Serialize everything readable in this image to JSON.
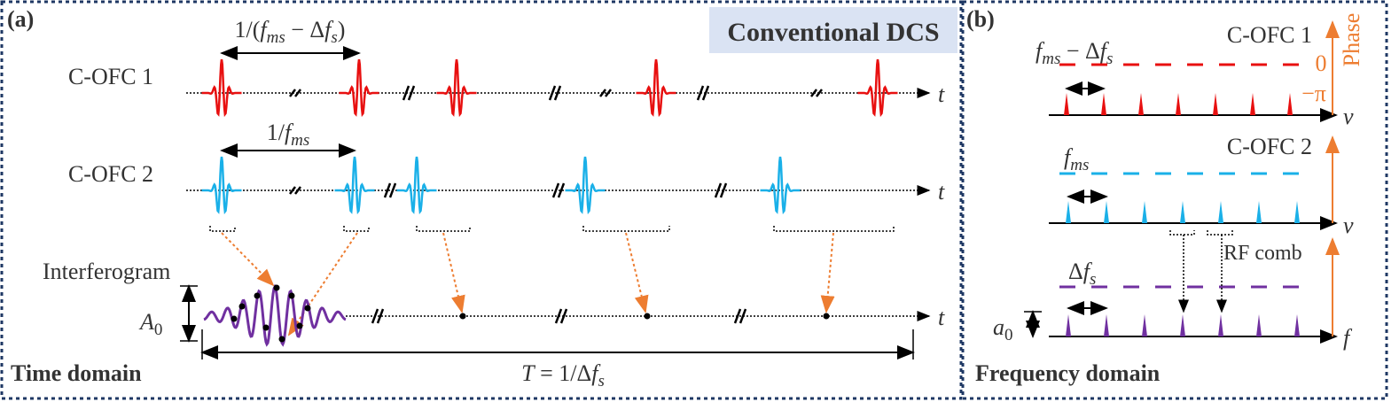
{
  "panel_a": {
    "tag": "(a)",
    "badge": "Conventional DCS",
    "period_label": [
      "1/(",
      "f",
      "ms",
      " − Δ",
      "f",
      "s",
      ")"
    ],
    "comb1": "C-OFC 1",
    "rep_label": [
      "1/",
      "f",
      "ms"
    ],
    "comb2": "C-OFC 2",
    "interferogram": "Interferogram",
    "amplitude": [
      "A",
      "0"
    ],
    "axis": "t",
    "measure_label": [
      "T",
      " = 1/Δ",
      "f",
      "s"
    ],
    "domain": "Time domain"
  },
  "panel_b": {
    "tag": "(b)",
    "comb1_label": [
      "f",
      "ms",
      " − Δ",
      "f",
      "s"
    ],
    "comb1": "C-OFC 1",
    "phase_zero": "0",
    "phase_pi": "−π",
    "phase": "Phase",
    "axis_nu": "ν",
    "comb2_label": [
      "f",
      "ms"
    ],
    "comb2": "C-OFC 2",
    "rf_comb": "RF comb",
    "rf_label": [
      "Δ",
      "f",
      "s"
    ],
    "amplitude": [
      "a",
      "0"
    ],
    "axis_f": "f",
    "domain": "Frequency domain"
  }
}
